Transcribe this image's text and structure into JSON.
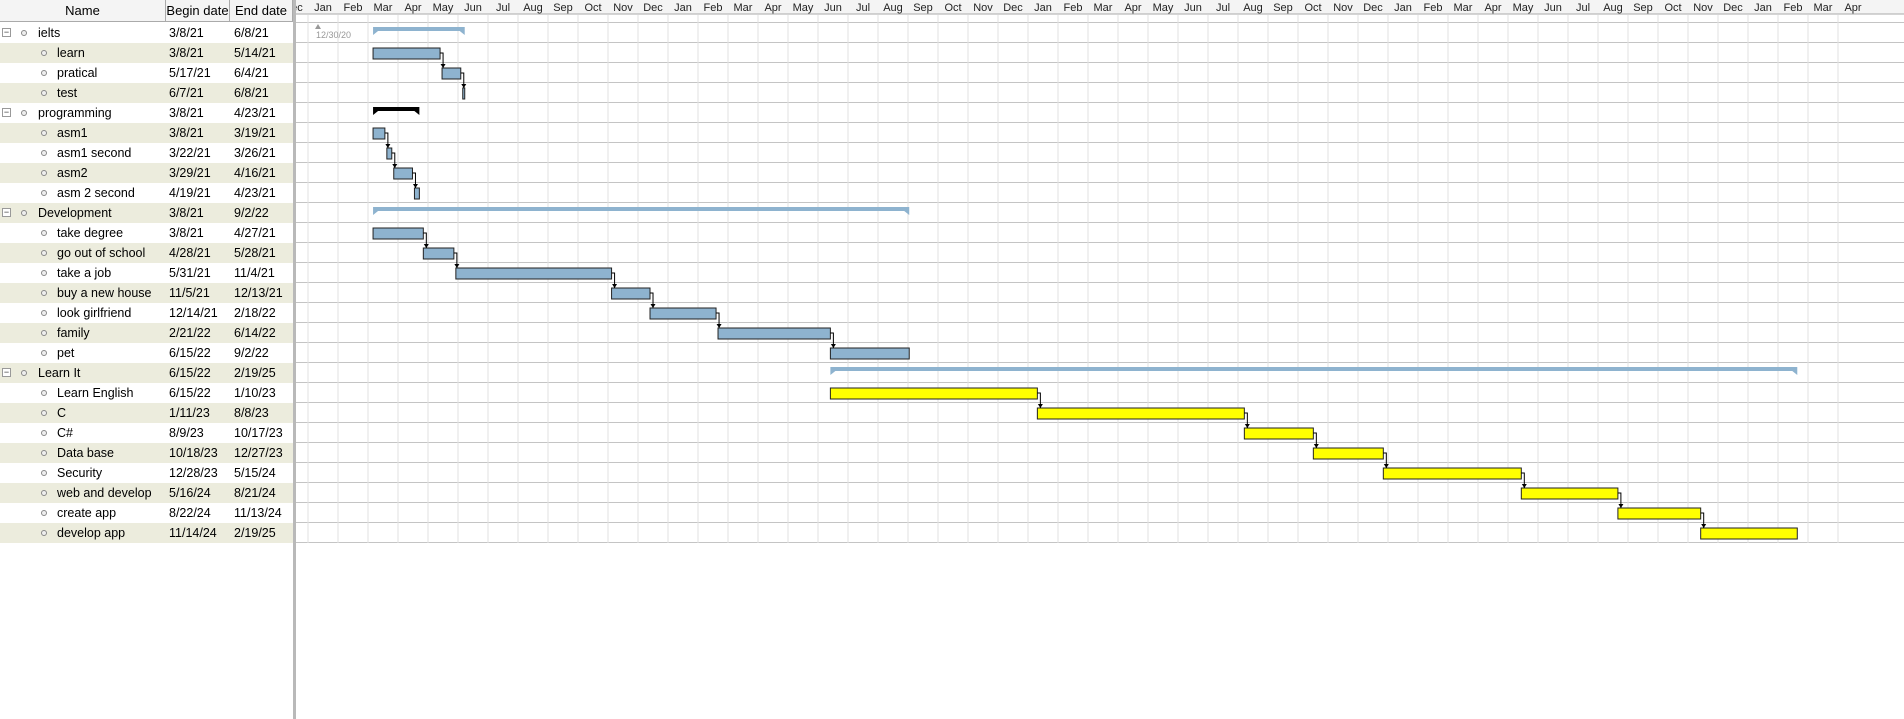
{
  "columns": {
    "name": "Name",
    "begin": "Begin date",
    "end": "End date"
  },
  "today_label": "12/30/20",
  "month_labels": [
    "Dec",
    "Jan",
    "Feb",
    "Mar",
    "Apr",
    "May",
    "Jun",
    "Jul",
    "Aug",
    "Sep",
    "Oct",
    "Nov",
    "Dec",
    "Jan",
    "Feb",
    "Mar",
    "Apr",
    "May",
    "Jun",
    "Jul",
    "Aug",
    "Sep",
    "Oct",
    "Nov",
    "Dec",
    "Jan",
    "Feb",
    "Mar",
    "Apr",
    "May",
    "Jun",
    "Jul",
    "Aug",
    "Sep",
    "Oct",
    "Nov",
    "Dec",
    "Jan",
    "Feb",
    "Mar",
    "Apr",
    "May",
    "Jun",
    "Jul",
    "Aug",
    "Sep",
    "Oct",
    "Nov",
    "Dec",
    "Jan",
    "Feb",
    "Mar",
    "Apr"
  ],
  "rows": [
    {
      "name": "ielts",
      "begin": "3/8/21",
      "end": "6/8/21",
      "type": "group"
    },
    {
      "name": "learn",
      "begin": "3/8/21",
      "end": "5/14/21",
      "type": "task"
    },
    {
      "name": "pratical",
      "begin": "5/17/21",
      "end": "6/4/21",
      "type": "task"
    },
    {
      "name": "test",
      "begin": "6/7/21",
      "end": "6/8/21",
      "type": "task"
    },
    {
      "name": "programming",
      "begin": "3/8/21",
      "end": "4/23/21",
      "type": "group"
    },
    {
      "name": "asm1",
      "begin": "3/8/21",
      "end": "3/19/21",
      "type": "task"
    },
    {
      "name": "asm1 second",
      "begin": "3/22/21",
      "end": "3/26/21",
      "type": "task"
    },
    {
      "name": "asm2",
      "begin": "3/29/21",
      "end": "4/16/21",
      "type": "task"
    },
    {
      "name": "asm 2 second",
      "begin": "4/19/21",
      "end": "4/23/21",
      "type": "task"
    },
    {
      "name": "Development",
      "begin": "3/8/21",
      "end": "9/2/22",
      "type": "group"
    },
    {
      "name": "take  degree",
      "begin": "3/8/21",
      "end": "4/27/21",
      "type": "task"
    },
    {
      "name": "go out of school",
      "begin": "4/28/21",
      "end": "5/28/21",
      "type": "task"
    },
    {
      "name": "take a job",
      "begin": "5/31/21",
      "end": "11/4/21",
      "type": "task"
    },
    {
      "name": "buy a new house",
      "begin": "11/5/21",
      "end": "12/13/21",
      "type": "task"
    },
    {
      "name": "look girlfriend",
      "begin": "12/14/21",
      "end": "2/18/22",
      "type": "task"
    },
    {
      "name": "family",
      "begin": "2/21/22",
      "end": "6/14/22",
      "type": "task"
    },
    {
      "name": "pet",
      "begin": "6/15/22",
      "end": "9/2/22",
      "type": "task"
    },
    {
      "name": "Learn It",
      "begin": "6/15/22",
      "end": "2/19/25",
      "type": "group"
    },
    {
      "name": "Learn English",
      "begin": "6/15/22",
      "end": "1/10/23",
      "type": "task"
    },
    {
      "name": "C",
      "begin": "1/11/23",
      "end": "8/8/23",
      "type": "task"
    },
    {
      "name": "C#",
      "begin": "8/9/23",
      "end": "10/17/23",
      "type": "task"
    },
    {
      "name": "Data base",
      "begin": "10/18/23",
      "end": "12/27/23",
      "type": "task"
    },
    {
      "name": "Security",
      "begin": "12/28/23",
      "end": "5/15/24",
      "type": "task"
    },
    {
      "name": "web and develop",
      "begin": "5/16/24",
      "end": "8/21/24",
      "type": "task"
    },
    {
      "name": "create app",
      "begin": "8/22/24",
      "end": "11/13/24",
      "type": "task"
    },
    {
      "name": "develop app",
      "begin": "11/14/24",
      "end": "2/19/25",
      "type": "task"
    }
  ],
  "colors": {
    "task_blue": "#8eb3cf",
    "task_yellow": "#ffff00",
    "group_summary": "#8eb3cf",
    "selected_group": "#000000",
    "alt_row": "#ececdd",
    "grid": "#cccccc"
  },
  "icons": {
    "expand_toggle": "minus-box-icon",
    "row_bullet": "circle-bullet-icon"
  }
}
